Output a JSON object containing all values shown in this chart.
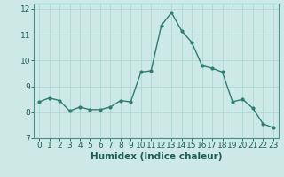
{
  "x": [
    0,
    1,
    2,
    3,
    4,
    5,
    6,
    7,
    8,
    9,
    10,
    11,
    12,
    13,
    14,
    15,
    16,
    17,
    18,
    19,
    20,
    21,
    22,
    23
  ],
  "y": [
    8.4,
    8.55,
    8.45,
    8.05,
    8.2,
    8.1,
    8.1,
    8.2,
    8.45,
    8.4,
    9.55,
    9.6,
    11.35,
    11.85,
    11.15,
    10.7,
    9.8,
    9.7,
    9.55,
    8.4,
    8.5,
    8.15,
    7.55,
    7.4
  ],
  "line_color": "#2e7d6e",
  "marker": "o",
  "markersize": 2.0,
  "linewidth": 1.0,
  "bg_color": "#cce9e5",
  "grid_color": "#aad4ce",
  "xlabel": "Humidex (Indice chaleur)",
  "xlim": [
    -0.5,
    23.5
  ],
  "ylim": [
    7,
    12.2
  ],
  "yticks": [
    7,
    8,
    9,
    10,
    11,
    12
  ],
  "xticks": [
    0,
    1,
    2,
    3,
    4,
    5,
    6,
    7,
    8,
    9,
    10,
    11,
    12,
    13,
    14,
    15,
    16,
    17,
    18,
    19,
    20,
    21,
    22,
    23
  ],
  "tick_fontsize": 6.5,
  "xlabel_fontsize": 7.5,
  "tick_color": "#1e5c50",
  "spine_color": "#4a9080"
}
